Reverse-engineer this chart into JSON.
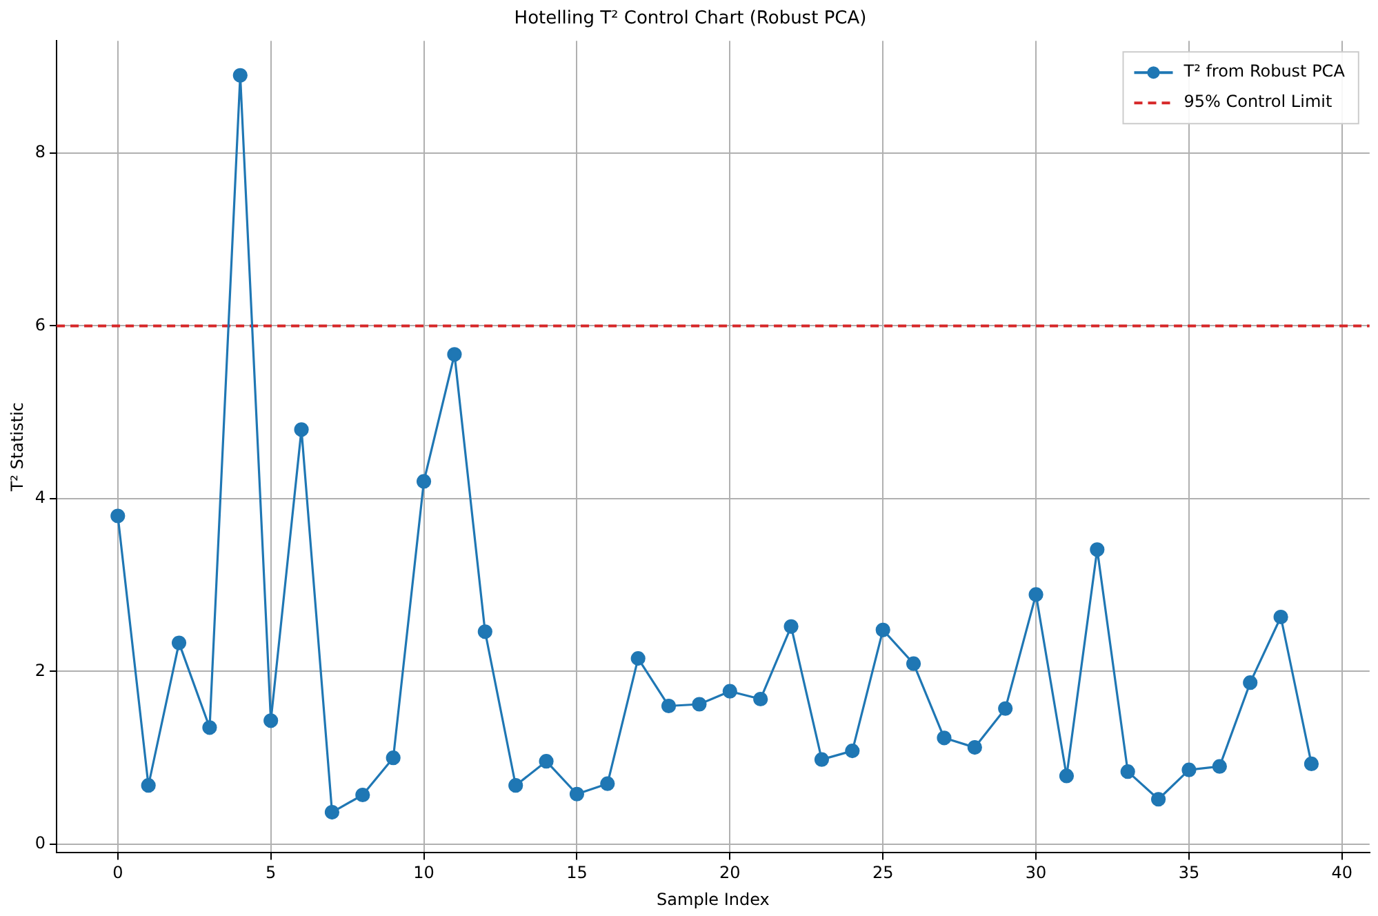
{
  "chart_data": {
    "type": "line",
    "title": "Hotelling T² Control Chart (Robust PCA)",
    "xlabel": "Sample Index",
    "ylabel": "T² Statistic",
    "x": [
      0,
      1,
      2,
      3,
      4,
      5,
      6,
      7,
      8,
      9,
      10,
      11,
      12,
      13,
      14,
      15,
      16,
      17,
      18,
      19,
      20,
      21,
      22,
      23,
      24,
      25,
      26,
      27,
      28,
      29,
      30,
      31,
      32,
      33,
      34,
      35,
      36,
      37,
      38,
      39
    ],
    "series": [
      {
        "name": "T² from Robust PCA",
        "color": "#1f77b4",
        "values": [
          3.8,
          0.68,
          2.33,
          1.35,
          8.9,
          1.43,
          4.8,
          0.37,
          0.57,
          1.0,
          4.2,
          5.67,
          2.46,
          0.68,
          0.96,
          0.58,
          0.7,
          2.15,
          1.6,
          1.62,
          1.77,
          1.68,
          2.52,
          0.98,
          1.08,
          2.48,
          2.09,
          1.23,
          1.12,
          1.57,
          2.89,
          0.79,
          3.41,
          0.84,
          0.52,
          0.86,
          0.9,
          1.87,
          2.63,
          0.93
        ]
      }
    ],
    "ref_lines": [
      {
        "axis": "y",
        "value": 6,
        "label": "95% Control Limit",
        "color": "#d62728",
        "line_style": "dashed"
      }
    ],
    "xlim": [
      -2,
      40.9
    ],
    "xticks": [
      0,
      5,
      10,
      15,
      20,
      25,
      30,
      35,
      40
    ],
    "ylim": [
      -0.1,
      9.3
    ],
    "yticks": [
      0,
      2,
      4,
      6,
      8
    ],
    "grid": true,
    "legend": "top right",
    "marker": "circle",
    "line_style": "solid"
  }
}
